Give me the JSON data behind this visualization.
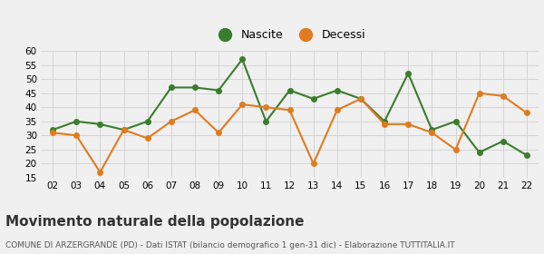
{
  "years": [
    "02",
    "03",
    "04",
    "05",
    "06",
    "07",
    "08",
    "09",
    "10",
    "11",
    "12",
    "13",
    "14",
    "15",
    "16",
    "17",
    "18",
    "19",
    "20",
    "21",
    "22"
  ],
  "nascite": [
    32,
    35,
    34,
    32,
    35,
    47,
    47,
    46,
    57,
    35,
    46,
    43,
    46,
    43,
    35,
    52,
    32,
    35,
    24,
    28,
    23
  ],
  "decessi": [
    31,
    30,
    17,
    32,
    29,
    35,
    39,
    31,
    41,
    40,
    39,
    20,
    39,
    43,
    34,
    34,
    31,
    25,
    45,
    44,
    38
  ],
  "nascite_color": "#3a7d2c",
  "decessi_color": "#e07b20",
  "bg_color": "#f0f0f0",
  "grid_color": "#d0d0d0",
  "title": "Movimento naturale della popolazione",
  "subtitle": "COMUNE DI ARZERGRANDE (PD) - Dati ISTAT (bilancio demografico 1 gen-31 dic) - Elaborazione TUTTITALIA.IT",
  "legend_nascite": "Nascite",
  "legend_decessi": "Decessi",
  "ylim": [
    15,
    60
  ],
  "yticks": [
    15,
    20,
    25,
    30,
    35,
    40,
    45,
    50,
    55,
    60
  ],
  "marker_size": 4,
  "linewidth": 1.5,
  "tick_fontsize": 7.5,
  "legend_fontsize": 9,
  "title_fontsize": 11,
  "subtitle_fontsize": 6.5
}
